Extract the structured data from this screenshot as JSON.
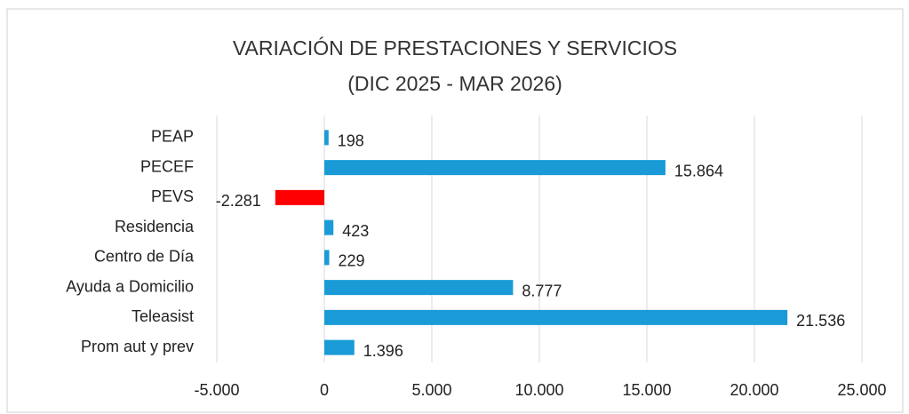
{
  "chart_data": {
    "type": "barh",
    "title": "VARIACIÓN DE PRESTACIONES Y SERVICIOS",
    "subtitle": "(DIC 2025 - MAR 2026)",
    "categories": [
      "PEAP",
      "PECEF",
      "PEVS",
      "Residencia",
      "Centro de Día",
      "Ayuda a Domicilio",
      "Teleasist",
      "Prom aut y prev"
    ],
    "values": [
      198,
      15864,
      -2281,
      423,
      229,
      8777,
      21536,
      1396
    ],
    "value_labels": [
      "198",
      "15.864",
      "-2.281",
      "423",
      "229",
      "8.777",
      "21.536",
      "1.396"
    ],
    "colors": [
      "#1a9bd7",
      "#1a9bd7",
      "#ff0000",
      "#1a9bd7",
      "#1a9bd7",
      "#1a9bd7",
      "#1a9bd7",
      "#1a9bd7"
    ],
    "xlim": [
      -5000,
      25000
    ],
    "xticks": [
      {
        "value": -5000,
        "label": "-5.000"
      },
      0,
      {
        "value": 5000,
        "label": "5.000"
      },
      {
        "value": 10000,
        "label": "10.000"
      },
      {
        "value": 15000,
        "label": "15.000"
      },
      {
        "value": 20000,
        "label": "20.000"
      },
      {
        "value": 25000,
        "label": "25.000"
      }
    ],
    "grid": true
  }
}
